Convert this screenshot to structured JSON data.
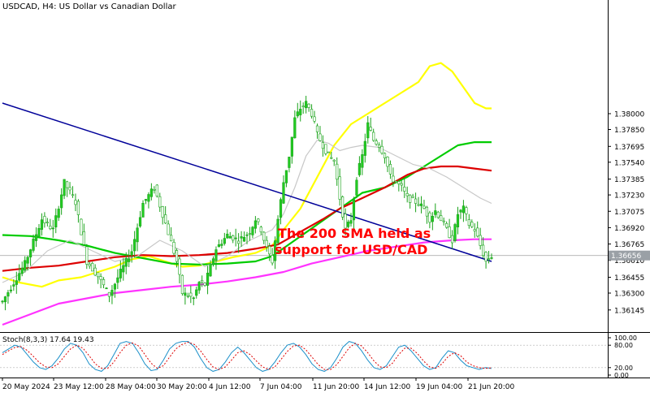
{
  "chart_data": [
    {
      "type": "candlestick",
      "title": "USDCAD, H4:  US Dollar vs Canadian Dollar",
      "ylim": [
        1.36,
        1.39
      ],
      "y_ticks": [
        1.38,
        1.3785,
        1.3769,
        1.3754,
        1.3738,
        1.3723,
        1.37075,
        1.3692,
        1.36765,
        1.3661,
        1.3645,
        1.363,
        1.3614
      ],
      "y_tick_labels": [
        "1.38000",
        "1.37850",
        "1.37695",
        "1.37540",
        "1.37385",
        "1.37230",
        "1.37075",
        "1.36920",
        "1.36765",
        "1.36610",
        "1.36455",
        "1.36300",
        "1.36145"
      ],
      "current_price_label": "1.36656",
      "current_price": 1.36656,
      "x_tick_labels": [
        "20 May 2024",
        "23 May 12:00",
        "28 May 04:00",
        "30 May 20:00",
        "4 Jun 12:00",
        "7 Jun 04:00",
        "11 Jun 20:00",
        "14 Jun 12:00",
        "19 Jun 04:00",
        "21 Jun 20:00"
      ],
      "annotation": "The 200 SMA held as\nsupport for USD/CAD",
      "annotation_color": "#ff0000",
      "bull_color": "#22cc22",
      "bear_color": "#ffffff",
      "price_path": [
        [
          0,
          1.3622
        ],
        [
          8,
          1.3658
        ],
        [
          14,
          1.37
        ],
        [
          18,
          1.369
        ],
        [
          22,
          1.3735
        ],
        [
          26,
          1.3716
        ],
        [
          30,
          1.366
        ],
        [
          34,
          1.3646
        ],
        [
          38,
          1.3628
        ],
        [
          42,
          1.365
        ],
        [
          46,
          1.367
        ],
        [
          50,
          1.3715
        ],
        [
          54,
          1.373
        ],
        [
          58,
          1.3696
        ],
        [
          62,
          1.366
        ],
        [
          64,
          1.363
        ],
        [
          68,
          1.3625
        ],
        [
          70,
          1.364
        ],
        [
          72,
          1.3638
        ],
        [
          74,
          1.3655
        ],
        [
          76,
          1.3672
        ],
        [
          80,
          1.3685
        ],
        [
          84,
          1.368
        ],
        [
          88,
          1.3688
        ],
        [
          90,
          1.37
        ],
        [
          92,
          1.369
        ],
        [
          94,
          1.3672
        ],
        [
          96,
          1.366
        ],
        [
          98,
          1.37
        ],
        [
          100,
          1.3735
        ],
        [
          102,
          1.376
        ],
        [
          104,
          1.3795
        ],
        [
          106,
          1.3805
        ],
        [
          108,
          1.381
        ],
        [
          110,
          1.38
        ],
        [
          112,
          1.378
        ],
        [
          114,
          1.377
        ],
        [
          116,
          1.376
        ],
        [
          118,
          1.3755
        ],
        [
          120,
          1.372
        ],
        [
          122,
          1.369
        ],
        [
          124,
          1.37
        ],
        [
          126,
          1.374
        ],
        [
          128,
          1.376
        ],
        [
          130,
          1.379
        ],
        [
          132,
          1.3775
        ],
        [
          134,
          1.377
        ],
        [
          136,
          1.376
        ],
        [
          138,
          1.374
        ],
        [
          140,
          1.3735
        ],
        [
          142,
          1.373
        ],
        [
          144,
          1.372
        ],
        [
          148,
          1.3715
        ],
        [
          150,
          1.371
        ],
        [
          152,
          1.37
        ],
        [
          154,
          1.3708
        ],
        [
          156,
          1.37
        ],
        [
          158,
          1.369
        ],
        [
          160,
          1.368
        ],
        [
          162,
          1.3705
        ],
        [
          164,
          1.371
        ],
        [
          166,
          1.3695
        ],
        [
          168,
          1.369
        ],
        [
          170,
          1.3675
        ],
        [
          172,
          1.366
        ],
        [
          174,
          1.3665
        ]
      ],
      "series": [
        {
          "name": "",
          "color": "#ffff00",
          "points": [
            [
              0,
              1.3645
            ],
            [
              6,
              1.364
            ],
            [
              14,
              1.3636
            ],
            [
              20,
              1.3642
            ],
            [
              28,
              1.3645
            ],
            [
              34,
              1.365
            ],
            [
              40,
              1.3655
            ],
            [
              46,
              1.3662
            ],
            [
              52,
              1.3665
            ],
            [
              58,
              1.366
            ],
            [
              64,
              1.3655
            ],
            [
              70,
              1.3656
            ],
            [
              76,
              1.366
            ],
            [
              82,
              1.3664
            ],
            [
              90,
              1.3668
            ],
            [
              96,
              1.3675
            ],
            [
              100,
              1.369
            ],
            [
              106,
              1.371
            ],
            [
              112,
              1.374
            ],
            [
              118,
              1.377
            ],
            [
              124,
              1.379
            ],
            [
              130,
              1.38
            ],
            [
              136,
              1.381
            ],
            [
              142,
              1.382
            ],
            [
              148,
              1.383
            ],
            [
              152,
              1.3845
            ],
            [
              156,
              1.3848
            ],
            [
              160,
              1.384
            ],
            [
              164,
              1.3825
            ],
            [
              168,
              1.381
            ],
            [
              172,
              1.3805
            ],
            [
              174,
              1.3805
            ]
          ]
        },
        {
          "name": "",
          "color": "#00cc00",
          "points": [
            [
              0,
              1.3685
            ],
            [
              10,
              1.3684
            ],
            [
              20,
              1.368
            ],
            [
              30,
              1.3675
            ],
            [
              40,
              1.3668
            ],
            [
              50,
              1.3663
            ],
            [
              60,
              1.3658
            ],
            [
              70,
              1.3657
            ],
            [
              80,
              1.3658
            ],
            [
              90,
              1.366
            ],
            [
              96,
              1.3665
            ],
            [
              104,
              1.368
            ],
            [
              112,
              1.3695
            ],
            [
              120,
              1.371
            ],
            [
              128,
              1.3725
            ],
            [
              136,
              1.373
            ],
            [
              144,
              1.374
            ],
            [
              150,
              1.375
            ],
            [
              156,
              1.376
            ],
            [
              162,
              1.377
            ],
            [
              168,
              1.3773
            ],
            [
              174,
              1.3773
            ]
          ]
        },
        {
          "name": "",
          "color": "#dd0000",
          "points": [
            [
              0,
              1.3651
            ],
            [
              10,
              1.3654
            ],
            [
              20,
              1.3656
            ],
            [
              30,
              1.366
            ],
            [
              40,
              1.3664
            ],
            [
              50,
              1.3666
            ],
            [
              60,
              1.3665
            ],
            [
              70,
              1.3666
            ],
            [
              80,
              1.3668
            ],
            [
              90,
              1.3672
            ],
            [
              98,
              1.3676
            ],
            [
              106,
              1.3688
            ],
            [
              114,
              1.37
            ],
            [
              120,
              1.371
            ],
            [
              128,
              1.372
            ],
            [
              136,
              1.373
            ],
            [
              144,
              1.3742
            ],
            [
              150,
              1.3748
            ],
            [
              156,
              1.375
            ],
            [
              162,
              1.375
            ],
            [
              168,
              1.3748
            ],
            [
              174,
              1.3746
            ]
          ]
        },
        {
          "name": "",
          "color": "#ff33ff",
          "points": [
            [
              0,
              1.36
            ],
            [
              10,
              1.361
            ],
            [
              20,
              1.362
            ],
            [
              30,
              1.3625
            ],
            [
              40,
              1.363
            ],
            [
              50,
              1.3633
            ],
            [
              60,
              1.3636
            ],
            [
              70,
              1.3638
            ],
            [
              80,
              1.3641
            ],
            [
              90,
              1.3645
            ],
            [
              100,
              1.365
            ],
            [
              110,
              1.3658
            ],
            [
              120,
              1.3664
            ],
            [
              130,
              1.367
            ],
            [
              140,
              1.3674
            ],
            [
              150,
              1.3678
            ],
            [
              160,
              1.368
            ],
            [
              168,
              1.3681
            ],
            [
              174,
              1.3681
            ]
          ]
        },
        {
          "name": "",
          "color": "#c8c8c8",
          "points": [
            [
              0,
              1.364
            ],
            [
              8,
              1.365
            ],
            [
              16,
              1.367
            ],
            [
              24,
              1.368
            ],
            [
              32,
              1.367
            ],
            [
              40,
              1.366
            ],
            [
              48,
              1.3665
            ],
            [
              56,
              1.368
            ],
            [
              64,
              1.367
            ],
            [
              72,
              1.3655
            ],
            [
              80,
              1.3665
            ],
            [
              88,
              1.368
            ],
            [
              96,
              1.369
            ],
            [
              100,
              1.3705
            ],
            [
              104,
              1.373
            ],
            [
              108,
              1.376
            ],
            [
              112,
              1.3775
            ],
            [
              116,
              1.3772
            ],
            [
              120,
              1.3765
            ],
            [
              124,
              1.3768
            ],
            [
              128,
              1.377
            ],
            [
              134,
              1.3768
            ],
            [
              140,
              1.376
            ],
            [
              146,
              1.3752
            ],
            [
              152,
              1.3748
            ],
            [
              158,
              1.374
            ],
            [
              164,
              1.373
            ],
            [
              170,
              1.372
            ],
            [
              174,
              1.3715
            ]
          ]
        },
        {
          "name": "",
          "color": "#000099",
          "points": [
            [
              0,
              1.381
            ],
            [
              174,
              1.366
            ]
          ]
        }
      ]
    },
    {
      "type": "line",
      "title": "Stoch(8,3,3) 17.64 19.43",
      "ylim": [
        0,
        100
      ],
      "y_tick_labels": [
        "100.00",
        "80.00",
        "20.00",
        "0.00"
      ],
      "y_ticks": [
        100,
        80,
        20,
        0
      ],
      "series": [
        {
          "name": "",
          "color": "#1a8fc9",
          "values": [
            60,
            70,
            80,
            75,
            55,
            35,
            20,
            15,
            25,
            45,
            70,
            85,
            80,
            60,
            30,
            15,
            10,
            25,
            55,
            85,
            90,
            85,
            60,
            30,
            12,
            15,
            40,
            70,
            85,
            90,
            90,
            75,
            45,
            20,
            10,
            15,
            35,
            60,
            75,
            60,
            40,
            20,
            10,
            15,
            35,
            60,
            80,
            85,
            75,
            55,
            30,
            15,
            10,
            20,
            45,
            75,
            90,
            85,
            65,
            40,
            20,
            15,
            25,
            50,
            75,
            80,
            65,
            45,
            25,
            15,
            20,
            45,
            65,
            60,
            40,
            25,
            20,
            15,
            20,
            17.64
          ]
        },
        {
          "name": "",
          "color": "#dd0000",
          "values": [
            55,
            65,
            74,
            76,
            66,
            50,
            33,
            22,
            20,
            30,
            50,
            70,
            80,
            72,
            52,
            30,
            18,
            18,
            35,
            60,
            80,
            86,
            78,
            55,
            32,
            18,
            25,
            48,
            70,
            82,
            88,
            82,
            65,
            42,
            22,
            15,
            22,
            40,
            60,
            65,
            55,
            38,
            22,
            15,
            22,
            42,
            63,
            78,
            80,
            68,
            48,
            28,
            15,
            15,
            28,
            50,
            73,
            85,
            78,
            60,
            38,
            22,
            20,
            32,
            55,
            72,
            72,
            58,
            38,
            22,
            18,
            30,
            50,
            60,
            52,
            35,
            25,
            20,
            18,
            19.43
          ]
        }
      ]
    }
  ]
}
